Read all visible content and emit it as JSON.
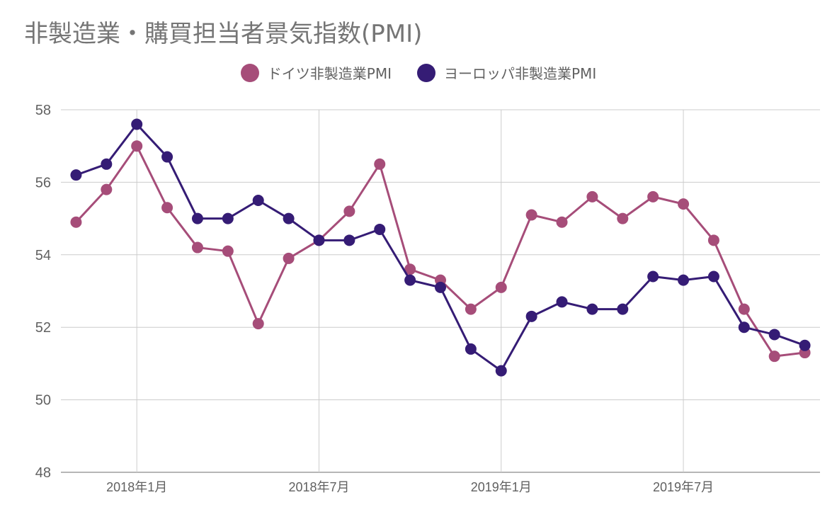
{
  "chart_data": {
    "type": "line",
    "title": "非製造業・購買担当者景気指数(PMI)",
    "xlabel": "",
    "ylabel": "",
    "x": [
      "2017-11",
      "2017-12",
      "2018-01",
      "2018-02",
      "2018-03",
      "2018-04",
      "2018-05",
      "2018-06",
      "2018-07",
      "2018-08",
      "2018-09",
      "2018-10",
      "2018-11",
      "2018-12",
      "2019-01",
      "2019-02",
      "2019-03",
      "2019-04",
      "2019-05",
      "2019-06",
      "2019-07",
      "2019-08",
      "2019-09",
      "2019-10",
      "2019-11"
    ],
    "xticks": [
      "2018年1月",
      "2018年7月",
      "2019年1月",
      "2019年7月"
    ],
    "xtick_positions": [
      "2018-01",
      "2018-07",
      "2019-01",
      "2019-07"
    ],
    "ylim": [
      48,
      58
    ],
    "yticks": [
      48,
      50,
      52,
      54,
      56,
      58
    ],
    "grid": true,
    "legend_position": "top",
    "series": [
      {
        "name": "ドイツ非製造業PMI",
        "color": "#a64d79",
        "values": [
          54.9,
          55.8,
          57.0,
          55.3,
          54.2,
          54.1,
          52.1,
          53.9,
          54.4,
          55.2,
          56.5,
          53.6,
          53.3,
          52.5,
          53.1,
          55.1,
          54.9,
          55.6,
          55.0,
          55.6,
          55.4,
          54.4,
          52.5,
          51.2,
          51.3
        ]
      },
      {
        "name": "ヨーロッパ非製造業PMI",
        "color": "#351c75",
        "values": [
          56.2,
          56.5,
          57.6,
          56.7,
          55.0,
          55.0,
          55.5,
          55.0,
          54.4,
          54.4,
          54.7,
          53.3,
          53.1,
          51.4,
          50.8,
          52.3,
          52.7,
          52.5,
          52.5,
          53.4,
          53.3,
          53.4,
          52.0,
          51.8,
          51.5
        ]
      }
    ]
  }
}
